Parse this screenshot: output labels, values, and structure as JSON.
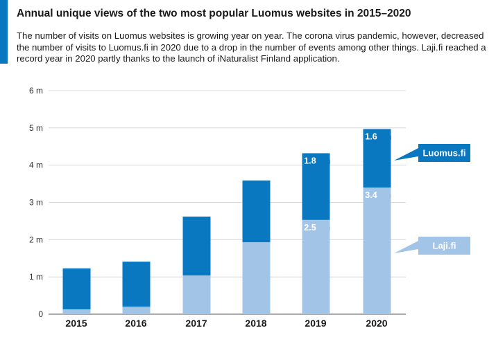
{
  "title": "Annual unique views of the two most popular Luomus websites in 2015–2020",
  "subtitle": "The number of visits on Luomus websites is growing year on year. The corona virus pandemic, however, decreased the number of visits to Luomus.fi in 2020 due to a drop in the number of events among other things. Laji.fi reached a record year in 2020 partly thanks to the launch of iNaturalist Finland application.",
  "chart_data": {
    "type": "bar",
    "stacked": true,
    "categories": [
      "2015",
      "2016",
      "2017",
      "2018",
      "2019",
      "2020"
    ],
    "bold_categories": [
      "2019",
      "2020"
    ],
    "y_ticks": [
      {
        "value": 0,
        "label": "0"
      },
      {
        "value": 1,
        "label": "1 m"
      },
      {
        "value": 2,
        "label": "2 m"
      },
      {
        "value": 3,
        "label": "3 m"
      },
      {
        "value": 4,
        "label": "4 m"
      },
      {
        "value": 5,
        "label": "5 m"
      },
      {
        "value": 6,
        "label": "6 m"
      }
    ],
    "ylim": [
      0,
      6
    ],
    "grid": true,
    "series": [
      {
        "name": "Laji.fi",
        "color": "#a2c4e7",
        "values": [
          0.13,
          0.2,
          1.04,
          1.93,
          2.53,
          3.4
        ],
        "data_labels": [
          "",
          "",
          "",
          "",
          "2.5",
          "3.4"
        ]
      },
      {
        "name": "Luomus.fi",
        "color": "#0a78c0",
        "values": [
          1.1,
          1.21,
          1.58,
          1.66,
          1.79,
          1.57
        ],
        "data_labels": [
          "",
          "",
          "",
          "",
          "1.8",
          "1.6"
        ]
      }
    ],
    "data_label_unit": "m",
    "legend_placement": "right, next to the 2020 bar"
  }
}
